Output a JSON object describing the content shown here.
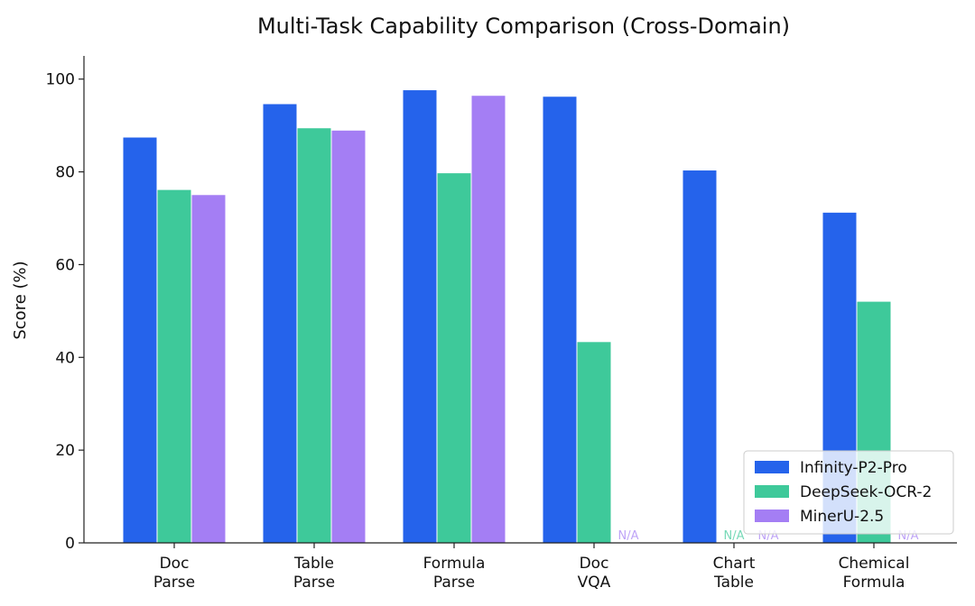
{
  "chart_data": {
    "type": "bar",
    "title": "Multi-Task Capability Comparison (Cross-Domain)",
    "xlabel": "",
    "ylabel": "Score (%)",
    "ylim": [
      0,
      105
    ],
    "yticks": [
      0,
      20,
      40,
      60,
      80,
      100
    ],
    "grid": false,
    "legend_position": "bottom-right",
    "categories": [
      "Doc\nParse",
      "Table\nParse",
      "Formula\nParse",
      "Doc\nVQA",
      "Chart\nTable",
      "Chemical\nFormula"
    ],
    "series": [
      {
        "name": "Infinity-P2-Pro",
        "color": "#2563EB",
        "values": [
          87.4,
          94.6,
          97.6,
          96.2,
          80.3,
          71.2
        ]
      },
      {
        "name": "DeepSeek-OCR-2",
        "color": "#3EC99A",
        "values": [
          76.1,
          89.4,
          79.7,
          43.3,
          null,
          52.0
        ]
      },
      {
        "name": "MinerU-2.5",
        "color": "#A47EF4",
        "values": [
          75.0,
          88.9,
          96.4,
          null,
          null,
          null
        ]
      }
    ],
    "missing_label": "N/A"
  }
}
